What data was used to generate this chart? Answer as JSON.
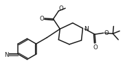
{
  "bg_color": "#ffffff",
  "line_color": "#1a1a1a",
  "line_width": 1.1,
  "fig_width": 1.98,
  "fig_height": 1.15,
  "dpi": 100,
  "font_size": 6.2,
  "xlim": [
    0,
    1.98
  ],
  "ylim": [
    0,
    1.15
  ]
}
